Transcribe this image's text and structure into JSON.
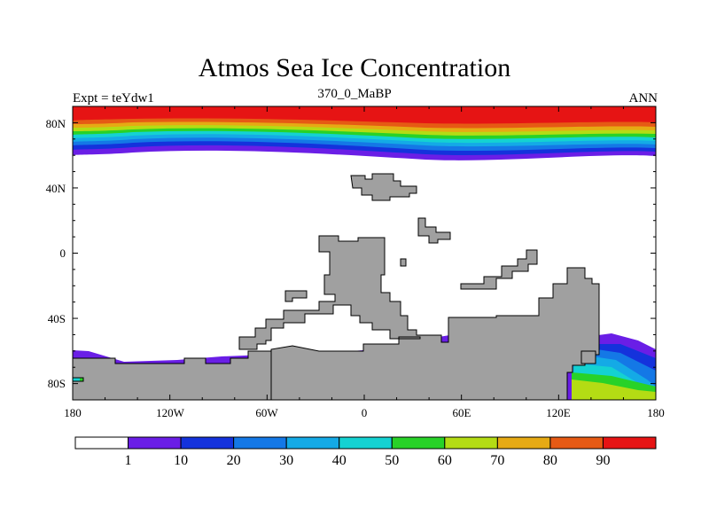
{
  "title": "Atmos Sea Ice Concentration",
  "subtitle": "370_0_MaBP",
  "left_label": "Expt = teYdw1",
  "right_label": "ANN",
  "x_ticks": [
    "180",
    "120W",
    "60W",
    "0",
    "60E",
    "120E",
    "180"
  ],
  "y_ticks": [
    "80N",
    "40N",
    "0",
    "40S",
    "80S"
  ],
  "colorbar": {
    "labels": [
      "1",
      "10",
      "20",
      "30",
      "40",
      "50",
      "60",
      "70",
      "80",
      "90"
    ],
    "colors": [
      "#ffffff",
      "#6a1ee6",
      "#1432dc",
      "#1478e6",
      "#14aae6",
      "#14d2d2",
      "#28d228",
      "#b4dc14",
      "#e6aa14",
      "#e65a14",
      "#e61414"
    ]
  },
  "land_color": "#a0a0a0",
  "chart_data": {
    "type": "map-contour",
    "variable": "Atmos Sea Ice Concentration",
    "period": "370_0_MaBP",
    "experiment": "teYdw1",
    "season": "ANN",
    "levels": [
      1,
      10,
      20,
      30,
      40,
      50,
      60,
      70,
      80,
      90
    ],
    "lon_range": [
      -180,
      180
    ],
    "lat_range": [
      -90,
      90
    ],
    "north_ice_edge_lat": [
      60,
      66
    ]
  }
}
